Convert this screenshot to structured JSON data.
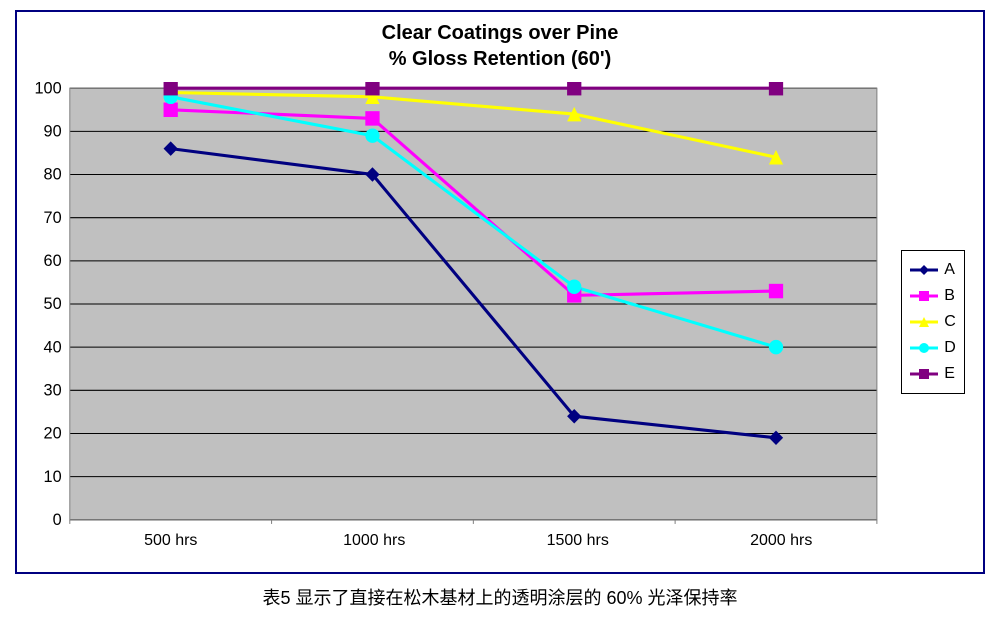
{
  "chart": {
    "type": "line",
    "title_line1": "Clear Coatings over Pine",
    "title_line2": "% Gloss Retention (60')",
    "title_fontsize": 20,
    "title_color": "#000000",
    "border_color": "#000080",
    "background_color": "#ffffff",
    "plot_background": "#c0c0c0",
    "grid_color": "#000000",
    "grid_width": 1,
    "axis_line_color": "#808080",
    "axis_line_width": 1,
    "ylim": [
      0,
      100
    ],
    "ytick_step": 10,
    "yticks": [
      0,
      10,
      20,
      30,
      40,
      50,
      60,
      70,
      80,
      90,
      100
    ],
    "x_categories": [
      "500 hrs",
      "1000 hrs",
      "1500 hrs",
      "2000 hrs"
    ],
    "x_label_fontsize": 16,
    "y_label_fontsize": 16,
    "line_width": 3,
    "marker_size": 7,
    "series": [
      {
        "name": "A",
        "label": "A",
        "color": "#000080",
        "marker": "diamond",
        "values": [
          86,
          80,
          24,
          19
        ]
      },
      {
        "name": "B",
        "label": "B",
        "color": "#ff00ff",
        "marker": "square",
        "values": [
          95,
          93,
          52,
          53
        ]
      },
      {
        "name": "C",
        "label": "C",
        "color": "#ffff00",
        "marker": "triangle",
        "values": [
          99,
          98,
          94,
          84
        ]
      },
      {
        "name": "D",
        "label": "D",
        "color": "#00ffff",
        "marker": "circle",
        "values": [
          98,
          89,
          54,
          40
        ]
      },
      {
        "name": "E",
        "label": "E",
        "color": "#800080",
        "marker": "square",
        "values": [
          100,
          100,
          100,
          100
        ]
      }
    ],
    "legend": {
      "border_color": "#000000",
      "background": "#ffffff",
      "fontsize": 16
    }
  },
  "caption": "表5 显示了直接在松木基材上的透明涂层的 60% 光泽保持率"
}
